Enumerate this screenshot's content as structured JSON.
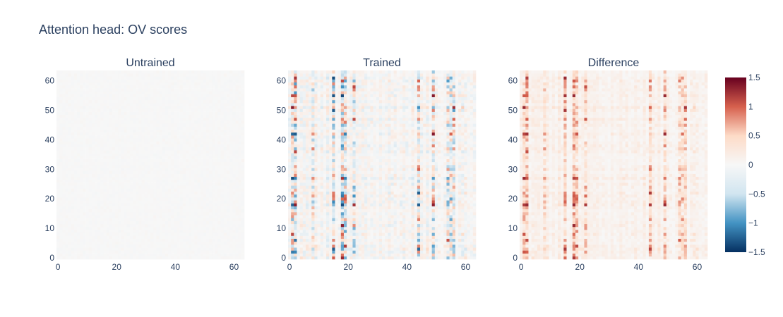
{
  "figure": {
    "title": "Attention head: OV scores"
  },
  "chart_data": {
    "type": "heatmap",
    "grid_size": 64,
    "colorscale": "RdBu (reversed)",
    "colors": {
      "neg_max": "#053061",
      "neg_mid": "#4393c3",
      "neg_low": "#d1e5f0",
      "zero": "#f7f7f7",
      "pos_low": "#fddbc7",
      "pos_mid": "#d6604d",
      "pos_max": "#67001f"
    },
    "zlim": [
      -1.5,
      1.5
    ],
    "colorbar": {
      "ticks": [
        1.5,
        1,
        0.5,
        0,
        -0.5,
        -1,
        -1.5
      ],
      "tick_labels": [
        "1.5",
        "1",
        "0.5",
        "0",
        "−0.5",
        "−1",
        "−1.5"
      ]
    },
    "subplots": [
      {
        "name": "Untrained",
        "x_ticks": [
          "0",
          "20",
          "40",
          "60"
        ],
        "y_ticks": [
          "0",
          "10",
          "20",
          "30",
          "40",
          "50",
          "60"
        ],
        "x_tick_values": [
          0,
          20,
          40,
          60
        ],
        "y_tick_values": [
          0,
          10,
          20,
          30,
          40,
          50,
          60
        ],
        "z_description": "near-zero noise, approximately within ±0.05"
      },
      {
        "name": "Trained",
        "x_ticks": [
          "0",
          "20",
          "40",
          "60"
        ],
        "y_ticks": [
          "0",
          "10",
          "20",
          "30",
          "40",
          "50",
          "60"
        ],
        "x_tick_values": [
          0,
          20,
          40,
          60
        ],
        "y_tick_values": [
          0,
          10,
          20,
          30,
          40,
          50,
          60
        ],
        "strong_columns": [
          1,
          2,
          8,
          15,
          18,
          19,
          22,
          44,
          49,
          54,
          55,
          56
        ],
        "z_description": "mixed positive/negative values, vertical banding, up to about ±1.5"
      },
      {
        "name": "Difference",
        "x_ticks": [
          "0",
          "20",
          "40",
          "60"
        ],
        "y_ticks": [
          "0",
          "10",
          "20",
          "30",
          "40",
          "50",
          "60"
        ],
        "x_tick_values": [
          0,
          20,
          40,
          60
        ],
        "y_tick_values": [
          0,
          10,
          20,
          30,
          40,
          50,
          60
        ],
        "strong_columns": [
          1,
          2,
          8,
          15,
          18,
          19,
          22,
          44,
          49,
          54,
          55,
          56
        ],
        "z_description": "mostly positive values, vertical banding, up to about 1.5"
      }
    ]
  }
}
